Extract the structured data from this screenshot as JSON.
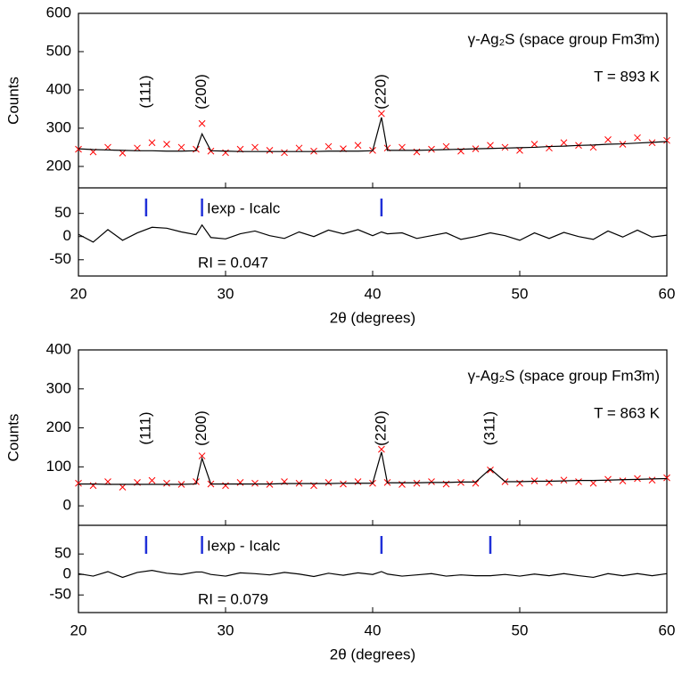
{
  "chart_data": [
    {
      "type": "line",
      "ylabel": "Counts",
      "xlabel": "2θ (degrees)",
      "phase_label": "γ-Ag₂S (space group Fm3̄m)",
      "temperature_label": "T = 893 K",
      "difference_label": "Iexp - Icalc",
      "r_label": "RI = 0.047",
      "xlim": [
        20,
        60
      ],
      "xticks": [
        20,
        30,
        40,
        50,
        60
      ],
      "ylim": [
        144,
        600
      ],
      "yticks": [
        200,
        300,
        400,
        500,
        600
      ],
      "y2lim": [
        -85,
        105
      ],
      "y2ticks": [
        -50,
        0,
        50
      ],
      "reflections": [
        {
          "label": "(111)",
          "x": 24.6
        },
        {
          "label": "(200)",
          "x": 28.4
        },
        {
          "label": "(220)",
          "x": 40.6
        }
      ],
      "reflection_color": "#1f2fd8",
      "x": [
        20,
        21,
        22,
        23,
        24,
        25,
        26,
        27,
        28,
        28.4,
        29,
        30,
        31,
        32,
        33,
        34,
        35,
        36,
        37,
        38,
        39,
        40,
        40.6,
        41,
        42,
        43,
        44,
        45,
        46,
        47,
        48,
        49,
        50,
        51,
        52,
        53,
        54,
        55,
        56,
        57,
        58,
        59,
        60
      ],
      "series": [
        {
          "style": "markers",
          "color": "#ff0000",
          "values": [
            245,
            238,
            250,
            235,
            248,
            262,
            258,
            250,
            245,
            312,
            240,
            236,
            245,
            250,
            242,
            236,
            248,
            240,
            252,
            246,
            255,
            242,
            338,
            248,
            250,
            238,
            245,
            252,
            240,
            246,
            255,
            250,
            242,
            258,
            248,
            262,
            255,
            250,
            270,
            258,
            275,
            262,
            268
          ]
        },
        {
          "style": "line",
          "color": "#000000",
          "values": [
            246,
            244,
            243,
            242,
            241,
            241,
            240,
            240,
            241,
            285,
            241,
            240,
            239,
            239,
            239,
            239,
            239,
            239,
            240,
            240,
            240,
            241,
            328,
            242,
            242,
            242,
            243,
            244,
            245,
            246,
            247,
            248,
            249,
            250,
            252,
            253,
            255,
            256,
            258,
            259,
            261,
            263,
            265
          ]
        },
        {
          "style": "line",
          "color": "#000000",
          "axis": "y2",
          "values": [
            5,
            -12,
            15,
            -8,
            8,
            20,
            18,
            10,
            4,
            25,
            -2,
            -5,
            6,
            12,
            2,
            -4,
            10,
            0,
            14,
            6,
            15,
            2,
            10,
            6,
            8,
            -4,
            2,
            8,
            -6,
            0,
            8,
            2,
            -8,
            8,
            -4,
            9,
            0,
            -6,
            12,
            -1,
            14,
            -1,
            3
          ]
        }
      ]
    },
    {
      "type": "line",
      "ylabel": "Counts",
      "xlabel": "2θ (degrees)",
      "phase_label": "γ-Ag₂S (space group Fm3̄m)",
      "temperature_label": "T = 863 K",
      "difference_label": "Iexp - Icalc",
      "r_label": "RI = 0.079",
      "xlim": [
        20,
        60
      ],
      "xticks": [
        20,
        30,
        40,
        50,
        60
      ],
      "ylim": [
        -50,
        400
      ],
      "yticks": [
        0,
        100,
        200,
        300,
        400
      ],
      "y2lim": [
        -93,
        120
      ],
      "y2ticks": [
        -50,
        0,
        50
      ],
      "reflections": [
        {
          "label": "(111)",
          "x": 24.6
        },
        {
          "label": "(200)",
          "x": 28.4
        },
        {
          "label": "(220)",
          "x": 40.6
        },
        {
          "label": "(311)",
          "x": 48.0
        }
      ],
      "reflection_color": "#1f2fd8",
      "x": [
        20,
        21,
        22,
        23,
        24,
        25,
        26,
        27,
        28,
        28.4,
        29,
        30,
        31,
        32,
        33,
        34,
        35,
        36,
        37,
        38,
        39,
        40,
        40.6,
        41,
        42,
        43,
        44,
        45,
        46,
        47,
        48,
        49,
        50,
        51,
        52,
        53,
        54,
        55,
        56,
        57,
        58,
        59,
        60
      ],
      "series": [
        {
          "style": "markers",
          "color": "#ff0000",
          "values": [
            58,
            52,
            62,
            48,
            60,
            65,
            58,
            55,
            62,
            128,
            56,
            52,
            60,
            58,
            55,
            62,
            58,
            52,
            60,
            56,
            62,
            58,
            145,
            60,
            55,
            58,
            62,
            56,
            60,
            58,
            92,
            62,
            58,
            64,
            60,
            66,
            62,
            58,
            68,
            64,
            70,
            66,
            72
          ]
        },
        {
          "style": "line",
          "color": "#000000",
          "values": [
            56,
            56,
            55,
            55,
            55,
            55,
            55,
            55,
            56,
            122,
            56,
            56,
            56,
            56,
            56,
            57,
            57,
            57,
            57,
            58,
            58,
            58,
            138,
            59,
            59,
            59,
            60,
            60,
            61,
            61,
            95,
            62,
            62,
            63,
            63,
            64,
            65,
            65,
            66,
            67,
            68,
            69,
            70
          ]
        },
        {
          "style": "line",
          "color": "#000000",
          "axis": "y2",
          "values": [
            2,
            -4,
            7,
            -7,
            5,
            10,
            3,
            0,
            6,
            6,
            0,
            -4,
            4,
            2,
            -1,
            5,
            1,
            -5,
            3,
            -2,
            4,
            0,
            7,
            1,
            -4,
            -1,
            2,
            -4,
            -1,
            -3,
            -3,
            0,
            -4,
            1,
            -3,
            2,
            -3,
            -7,
            2,
            -3,
            2,
            -3,
            2
          ]
        }
      ]
    }
  ]
}
